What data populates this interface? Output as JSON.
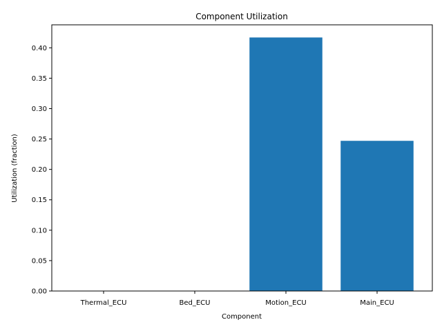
{
  "chart_data": {
    "type": "bar",
    "title": "Component Utilization",
    "xlabel": "Component",
    "ylabel": "Utilization (fraction)",
    "categories": [
      "Thermal_ECU",
      "Bed_ECU",
      "Motion_ECU",
      "Main_ECU"
    ],
    "values": [
      0.0,
      0.0,
      0.417,
      0.247
    ],
    "ylim": [
      0,
      0.4378
    ],
    "yticks": [
      0.0,
      0.05,
      0.1,
      0.15,
      0.2,
      0.25,
      0.3,
      0.35,
      0.4
    ],
    "ytick_labels": [
      "0.00",
      "0.05",
      "0.10",
      "0.15",
      "0.20",
      "0.25",
      "0.30",
      "0.35",
      "0.40"
    ],
    "grid": false,
    "bar_color": "#1f77b4"
  }
}
